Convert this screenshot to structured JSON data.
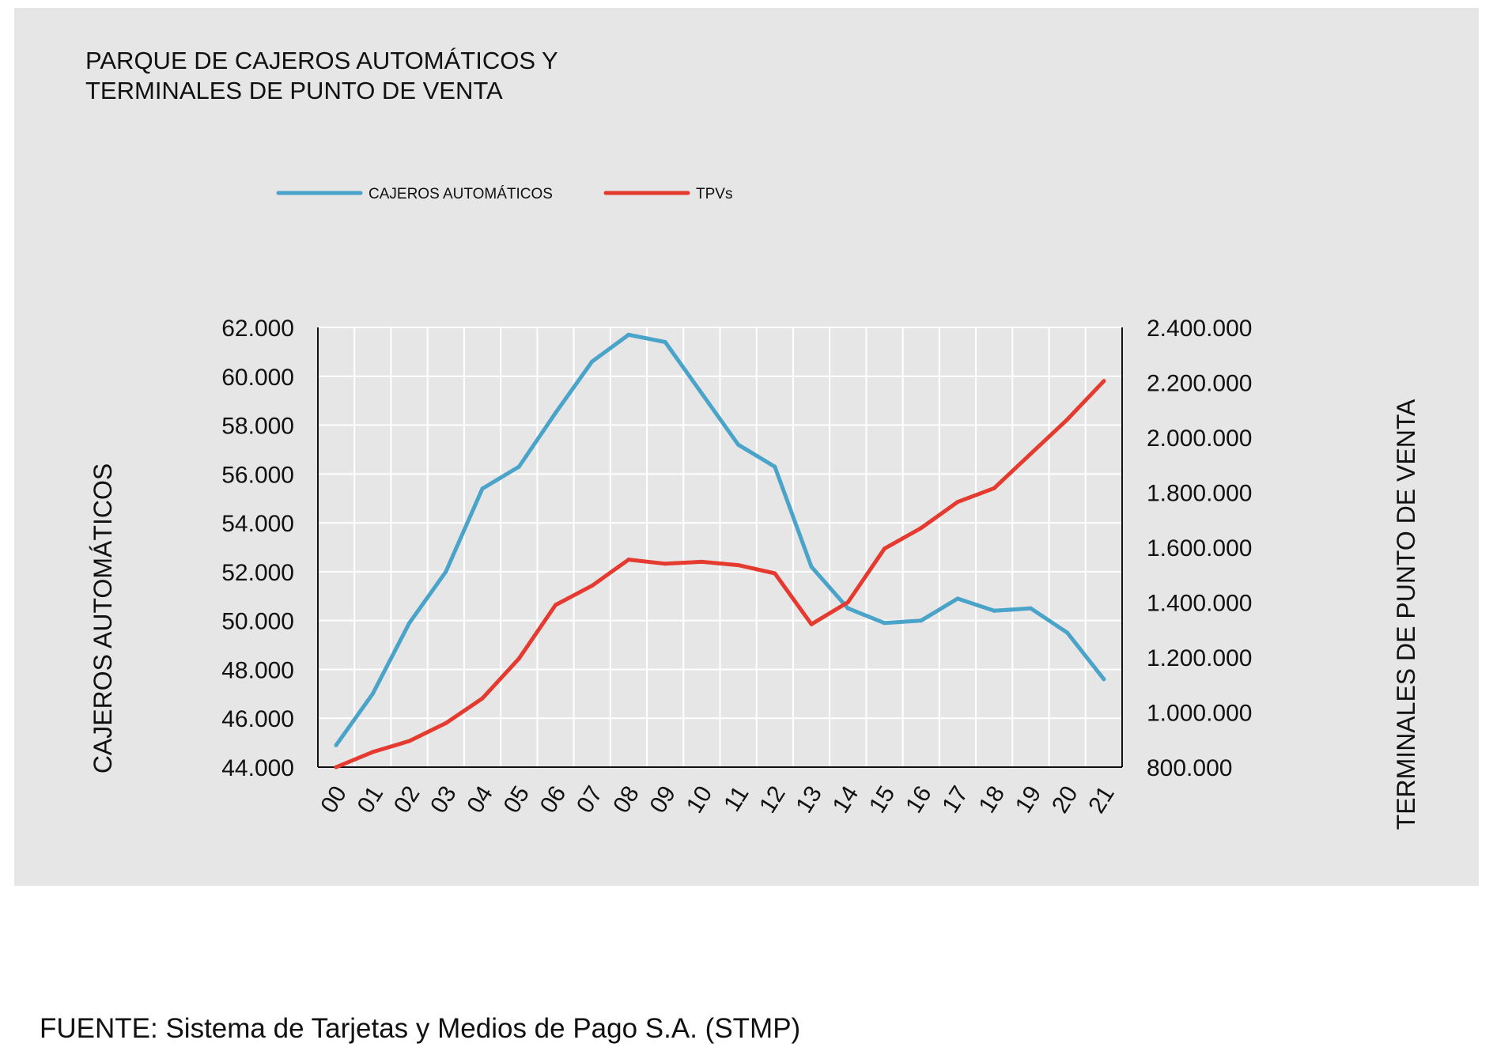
{
  "chart_data": {
    "type": "line",
    "title_lines": [
      "PARQUE DE CAJEROS AUTOMÁTICOS Y",
      "TERMINALES DE PUNTO DE VENTA"
    ],
    "categories": [
      "00",
      "01",
      "02",
      "03",
      "04",
      "05",
      "06",
      "07",
      "08",
      "09",
      "10",
      "11",
      "12",
      "13",
      "14",
      "15",
      "16",
      "17",
      "18",
      "19",
      "20",
      "21"
    ],
    "y_left": {
      "label": "CAJEROS AUTOMÁTICOS",
      "range": [
        44000,
        62000
      ],
      "ticks": [
        44000,
        46000,
        48000,
        50000,
        52000,
        54000,
        56000,
        58000,
        60000,
        62000
      ],
      "tick_labels": [
        "44.000",
        "46.000",
        "48.000",
        "50.000",
        "52.000",
        "54.000",
        "56.000",
        "58.000",
        "60.000",
        "62.000"
      ]
    },
    "y_right": {
      "label": "TERMINALES DE PUNTO DE VENTA",
      "range": [
        800000,
        2400000
      ],
      "ticks": [
        800000,
        1000000,
        1200000,
        1400000,
        1600000,
        1800000,
        2000000,
        2200000,
        2400000
      ],
      "tick_labels": [
        "800.000",
        "1.000.000",
        "1.200.000",
        "1.400.000",
        "1.600.000",
        "1.800.000",
        "2.000.000",
        "2.200.000",
        "2.400.000"
      ]
    },
    "series": [
      {
        "name": "CAJEROS AUTOMÁTICOS",
        "axis": "left",
        "color": "#4aa3c8",
        "values": [
          44900,
          47000,
          49900,
          52000,
          55400,
          56300,
          58500,
          60600,
          61700,
          61400,
          59300,
          57200,
          56300,
          52200,
          50500,
          49900,
          50000,
          50900,
          50400,
          50500,
          49500,
          47600
        ]
      },
      {
        "name": "TPVs",
        "axis": "right",
        "color": "#e53a2f",
        "values": [
          800000,
          855000,
          895000,
          960000,
          1050000,
          1195000,
          1390000,
          1460000,
          1555000,
          1540000,
          1547000,
          1535000,
          1505000,
          1320000,
          1400000,
          1595000,
          1670000,
          1765000,
          1815000,
          1940000,
          2065000,
          2205000
        ]
      }
    ],
    "grid": true,
    "legend_position": "top"
  },
  "source": "FUENTE: Sistema de Tarjetas y Medios de Pago S.A. (STMP)"
}
